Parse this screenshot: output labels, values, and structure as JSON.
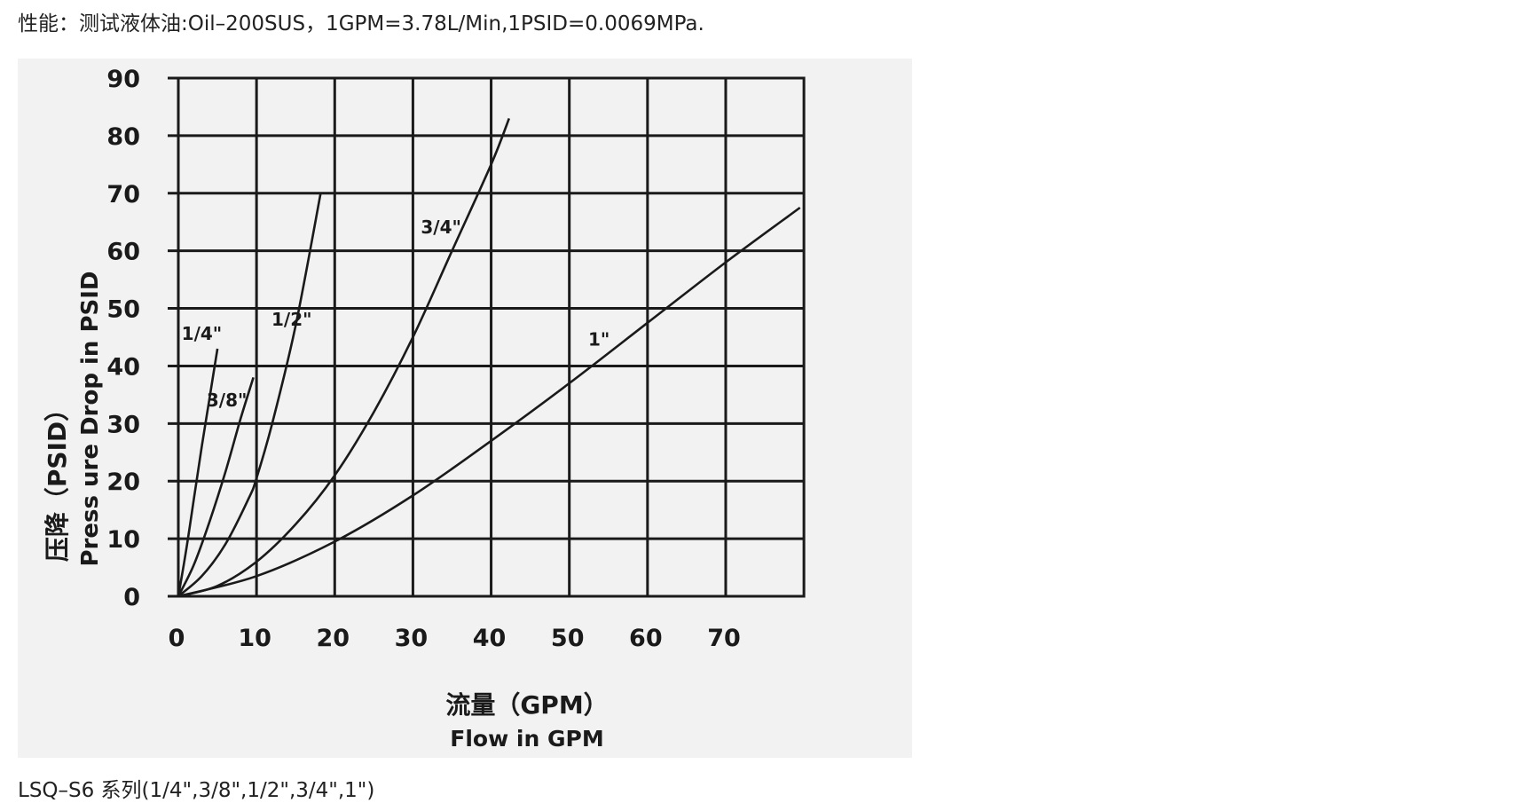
{
  "intro": "性能：测试液体油:Oil–200SUS，1GPM=3.78L/Min,1PSID=0.0069MPa.",
  "caption": "LSQ–S6 系列(1/4\",3/8\",1/2\",3/4\",1\")",
  "chart_data": {
    "type": "line",
    "xlabel_cn": "流量（GPM）",
    "xlabel_en": "Flow in GPM",
    "ylabel_cn": "压降（PSID）",
    "ylabel_en": "Press ure Drop in PSID",
    "xlim": [
      0,
      80
    ],
    "ylim": [
      0,
      90
    ],
    "x_ticks": [
      0,
      10,
      20,
      30,
      40,
      50,
      60,
      70
    ],
    "y_ticks": [
      0,
      10,
      20,
      30,
      40,
      50,
      60,
      70,
      80,
      90
    ],
    "grid": true,
    "legend": "none",
    "series": [
      {
        "name": "1/4\"",
        "x": [
          0,
          1,
          2,
          3,
          4,
          5
        ],
        "y": [
          0,
          8,
          17,
          26,
          34.5,
          43
        ]
      },
      {
        "name": "3/8\"",
        "x": [
          0,
          2,
          4,
          6,
          8,
          9.6
        ],
        "y": [
          0,
          5.5,
          13,
          21.5,
          31,
          38
        ]
      },
      {
        "name": "1/2\"",
        "x": [
          0,
          3,
          6,
          9,
          10,
          12,
          15,
          18.2
        ],
        "y": [
          0,
          3.5,
          9,
          17,
          20.5,
          30,
          47,
          70
        ]
      },
      {
        "name": "3/4\"",
        "x": [
          0,
          5,
          10,
          15,
          20,
          25,
          30,
          35,
          40,
          42.3
        ],
        "y": [
          0,
          1.8,
          6,
          12.5,
          21,
          32,
          45,
          60,
          75,
          83
        ]
      },
      {
        "name": "1\"",
        "x": [
          0,
          10,
          20,
          30,
          40,
          50,
          60,
          70,
          79.5
        ],
        "y": [
          0,
          3.5,
          9.5,
          17.5,
          27,
          37,
          47.5,
          58,
          67.5
        ]
      }
    ],
    "curve_labels": [
      {
        "text": "1/4\"",
        "x": 3,
        "y": 44.5
      },
      {
        "text": "3/8\"",
        "x": 6.2,
        "y": 33
      },
      {
        "text": "1/2\"",
        "x": 14.5,
        "y": 47
      },
      {
        "text": "3/4\"",
        "x": 33.6,
        "y": 63
      },
      {
        "text": "1\"",
        "x": 53.8,
        "y": 43.5
      }
    ]
  }
}
